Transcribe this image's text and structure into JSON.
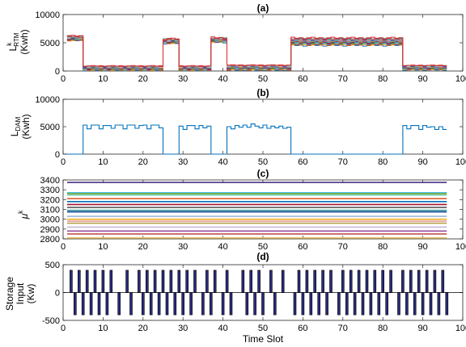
{
  "chart_data": [
    {
      "id": "a",
      "type": "line",
      "title": "(a)",
      "ylabel_main": "L",
      "ylabel_sup": "k",
      "ylabel_sub": "RTM",
      "ylabel_unit": "(Kwh)",
      "xlim": [
        0,
        100
      ],
      "ylim": [
        0,
        10000
      ],
      "xticks": [
        "0",
        "10",
        "20",
        "30",
        "40",
        "50",
        "60",
        "70",
        "80",
        "90",
        "100"
      ],
      "yticks": [
        "0",
        "5000",
        "10000"
      ],
      "ytick_values": [
        0,
        5000,
        10000
      ],
      "segments": [
        {
          "x0": 1,
          "x1": 5,
          "level": 5800,
          "spread": 700
        },
        {
          "x0": 5,
          "x1": 25,
          "level": 500,
          "spread": 800
        },
        {
          "x0": 25,
          "x1": 29,
          "level": 5300,
          "spread": 700
        },
        {
          "x0": 29,
          "x1": 37,
          "level": 500,
          "spread": 800
        },
        {
          "x0": 37,
          "x1": 41,
          "level": 5500,
          "spread": 700
        },
        {
          "x0": 41,
          "x1": 57,
          "level": 600,
          "spread": 900
        },
        {
          "x0": 57,
          "x1": 85,
          "level": 5200,
          "spread": 1200
        },
        {
          "x0": 85,
          "x1": 96,
          "level": 600,
          "spread": 800
        }
      ],
      "series_count": 16
    },
    {
      "id": "b",
      "type": "line",
      "title": "(b)",
      "ylabel_main": "L",
      "ylabel_sub": "DAM",
      "ylabel_unit": "(Kwh)",
      "xlim": [
        0,
        100
      ],
      "ylim": [
        0,
        10000
      ],
      "xticks": [
        "0",
        "10",
        "20",
        "30",
        "40",
        "50",
        "60",
        "70",
        "80",
        "90",
        "100"
      ],
      "yticks": [
        "0",
        "5000",
        "10000"
      ],
      "ytick_values": [
        0,
        5000,
        10000
      ],
      "color": "#0072bd",
      "x": [
        1,
        5,
        5,
        6,
        6,
        7,
        7,
        8,
        8,
        9,
        9,
        10,
        10,
        11,
        11,
        12,
        12,
        13,
        13,
        14,
        14,
        15,
        15,
        16,
        16,
        17,
        17,
        18,
        18,
        19,
        19,
        20,
        20,
        21,
        21,
        22,
        22,
        23,
        23,
        24,
        24,
        25,
        25,
        29,
        29,
        30,
        30,
        31,
        31,
        32,
        32,
        33,
        33,
        34,
        34,
        35,
        35,
        36,
        36,
        37,
        37,
        41,
        41,
        42,
        42,
        43,
        43,
        44,
        44,
        45,
        45,
        46,
        46,
        47,
        47,
        48,
        48,
        49,
        49,
        50,
        50,
        51,
        51,
        52,
        52,
        53,
        53,
        54,
        54,
        55,
        55,
        56,
        56,
        57,
        57,
        85,
        85,
        86,
        86,
        87,
        87,
        88,
        88,
        89,
        89,
        90,
        90,
        91,
        91,
        92,
        92,
        93,
        93,
        94,
        94,
        95,
        95,
        96
      ],
      "y": [
        0,
        0,
        5300,
        5300,
        4600,
        4600,
        5300,
        5300,
        5300,
        5300,
        4600,
        4600,
        5200,
        5200,
        5200,
        5200,
        4700,
        4700,
        5300,
        5300,
        5300,
        5300,
        4600,
        4600,
        5300,
        5300,
        5300,
        5300,
        4700,
        4700,
        5200,
        5200,
        5300,
        5300,
        4600,
        4600,
        5300,
        5300,
        5300,
        5300,
        4800,
        4800,
        0,
        0,
        5100,
        5100,
        4500,
        4500,
        5200,
        5200,
        5200,
        5200,
        4600,
        4600,
        5200,
        5200,
        4800,
        4800,
        5100,
        5100,
        0,
        0,
        5000,
        5000,
        4600,
        4600,
        5200,
        5200,
        4900,
        4900,
        5300,
        5300,
        4900,
        4900,
        5500,
        5500,
        5100,
        5100,
        4800,
        4800,
        5300,
        5300,
        4700,
        4700,
        5100,
        5100,
        4800,
        4800,
        5100,
        5100,
        4700,
        4700,
        4900,
        4900,
        0,
        0,
        5200,
        5200,
        4600,
        4600,
        5200,
        5200,
        5200,
        5200,
        4500,
        4500,
        5200,
        5200,
        4900,
        4900,
        5000,
        5000,
        4500,
        4500,
        5000,
        5000,
        4500,
        4500
      ]
    },
    {
      "id": "c",
      "type": "line",
      "title": "(c)",
      "ylabel_main": "μ",
      "ylabel_sup": "k",
      "xlim": [
        0,
        100
      ],
      "ylim": [
        2800,
        3400
      ],
      "xticks": [
        "0",
        "10",
        "20",
        "30",
        "40",
        "50",
        "60",
        "70",
        "80",
        "90",
        "100"
      ],
      "yticks": [
        "2800",
        "2900",
        "3000",
        "3100",
        "3200",
        "3300",
        "3400"
      ],
      "ytick_values": [
        2800,
        2900,
        3000,
        3100,
        3200,
        3300,
        3400
      ],
      "x_range": [
        1,
        96
      ],
      "series": [
        {
          "value": 3375,
          "color": "#4b2e83"
        },
        {
          "value": 3270,
          "color": "#4dbeee"
        },
        {
          "value": 3260,
          "color": "#77ac30"
        },
        {
          "value": 3245,
          "color": "#7fd3c2"
        },
        {
          "value": 3210,
          "color": "#d95319"
        },
        {
          "value": 3180,
          "color": "#0072bd"
        },
        {
          "value": 3150,
          "color": "#a2142f"
        },
        {
          "value": 3120,
          "color": "#5a5a5a"
        },
        {
          "value": 3090,
          "color": "#3a9c9c"
        },
        {
          "value": 3075,
          "color": "#1f4e9c"
        },
        {
          "value": 3030,
          "color": "#9ab7d3"
        },
        {
          "value": 3000,
          "color": "#edb120"
        },
        {
          "value": 2980,
          "color": "#e8a0a0"
        },
        {
          "value": 2960,
          "color": "#b8a04a"
        },
        {
          "value": 2920,
          "color": "#c8b8d8"
        },
        {
          "value": 2880,
          "color": "#9c4ca0"
        },
        {
          "value": 2850,
          "color": "#c05050"
        },
        {
          "value": 2810,
          "color": "#e8c060"
        }
      ]
    },
    {
      "id": "d",
      "type": "bar",
      "title": "(d)",
      "ylabel_lines": [
        "Storage",
        "Input",
        "(Kw)"
      ],
      "xlabel": "Time Slot",
      "xlim": [
        0,
        100
      ],
      "ylim": [
        -500,
        500
      ],
      "xticks": [
        "0",
        "10",
        "20",
        "30",
        "40",
        "50",
        "60",
        "70",
        "80",
        "90",
        "100"
      ],
      "yticks": [
        "-500",
        "0",
        "500"
      ],
      "ytick_values": [
        -500,
        0,
        500
      ],
      "bar_color": "#2b2b7a",
      "x": [
        2,
        3,
        4,
        5,
        6,
        7,
        8,
        9,
        10,
        11,
        12,
        14,
        16,
        17,
        19,
        20,
        21,
        22,
        23,
        24,
        25,
        26,
        27,
        28,
        29,
        30,
        31,
        32,
        33,
        35,
        36,
        37,
        38,
        40,
        41,
        42,
        45,
        46,
        47,
        48,
        49,
        50,
        52,
        53,
        55,
        58,
        59,
        60,
        61,
        62,
        63,
        64,
        65,
        66,
        67,
        69,
        70,
        71,
        72,
        73,
        74,
        75,
        76,
        77,
        78,
        79,
        80,
        81,
        82,
        84,
        85,
        86,
        87,
        88,
        89,
        90,
        91,
        92,
        93,
        94,
        95,
        96
      ],
      "values": [
        400,
        -400,
        400,
        -400,
        400,
        -400,
        400,
        -400,
        400,
        -400,
        400,
        -400,
        400,
        -400,
        400,
        -400,
        400,
        -400,
        400,
        -400,
        400,
        -400,
        400,
        -400,
        400,
        -400,
        400,
        -400,
        400,
        -400,
        400,
        -400,
        400,
        -400,
        400,
        -400,
        400,
        -400,
        400,
        -400,
        400,
        -400,
        400,
        -400,
        400,
        -400,
        400,
        -400,
        400,
        -400,
        400,
        -400,
        400,
        -400,
        400,
        -400,
        400,
        -400,
        400,
        -400,
        400,
        -400,
        400,
        -400,
        400,
        -400,
        400,
        -400,
        400,
        -400,
        400,
        -400,
        400,
        -400,
        400,
        -400,
        400,
        -400,
        400,
        -400,
        400,
        -400
      ]
    }
  ],
  "palette_a": [
    "#0072bd",
    "#d95319",
    "#edb120",
    "#7e2f8e",
    "#77ac30",
    "#4dbeee",
    "#a2142f",
    "#5a5a5a",
    "#3a9c9c",
    "#b8a04a",
    "#9c4ca0",
    "#e8a0a0",
    "#1f4e9c",
    "#7fd3c2",
    "#c05050",
    "#d62728"
  ]
}
